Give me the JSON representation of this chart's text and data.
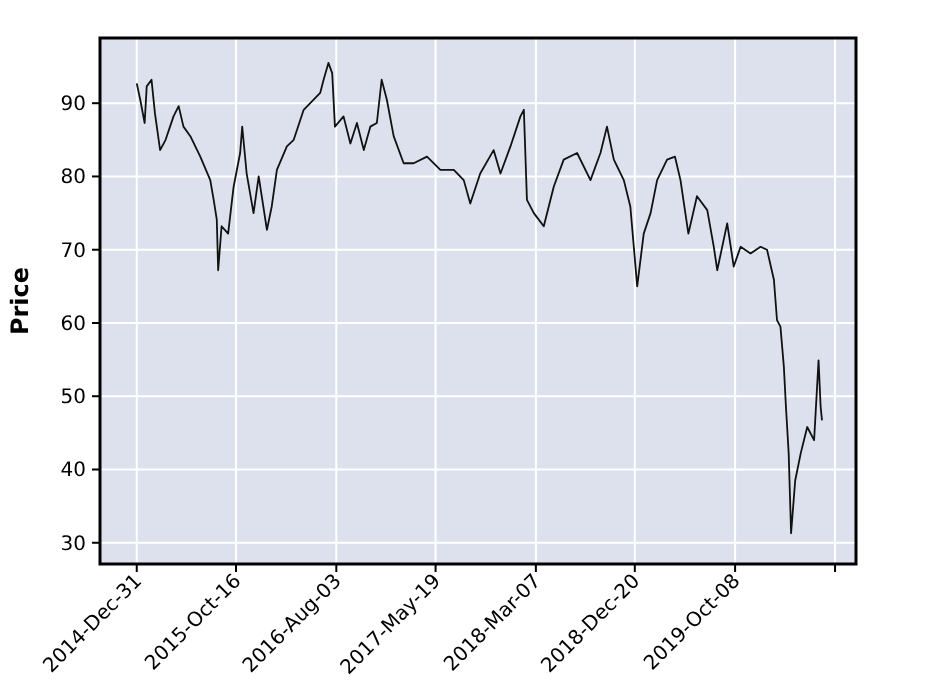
{
  "chart_data": {
    "type": "line",
    "ylabel": "Price",
    "grid": true,
    "marker": "none",
    "line_style": "solid",
    "xlim": [
      "2014-09-15",
      "2020-09-24"
    ],
    "ylim": [
      27.1,
      98.9
    ],
    "yticks": [
      30,
      40,
      50,
      60,
      70,
      80,
      90
    ],
    "xticks": [
      {
        "value": "2014-12-31",
        "label": "2014-Dec-31"
      },
      {
        "value": "2015-10-16",
        "label": "2015-Oct-16"
      },
      {
        "value": "2016-08-03",
        "label": "2016-Aug-03"
      },
      {
        "value": "2017-05-19",
        "label": "2017-May-19"
      },
      {
        "value": "2018-03-07",
        "label": "2018-Mar-07"
      },
      {
        "value": "2018-12-20",
        "label": "2018-Dec-20"
      },
      {
        "value": "2019-10-08",
        "label": "2019-Oct-08"
      },
      {
        "value": "2020-07-25",
        "label": null
      }
    ],
    "x": [
      "2014-12-31",
      "2015-01-10",
      "2015-01-23",
      "2015-01-29",
      "2015-02-12",
      "2015-02-22",
      "2015-03-09",
      "2015-03-25",
      "2015-04-17",
      "2015-05-02",
      "2015-05-16",
      "2015-06-05",
      "2015-07-04",
      "2015-08-02",
      "2015-08-12",
      "2015-08-21",
      "2015-08-25",
      "2015-09-04",
      "2015-09-23",
      "2015-10-09",
      "2015-10-28",
      "2015-11-03",
      "2015-11-16",
      "2015-12-06",
      "2015-12-21",
      "2016-01-14",
      "2016-01-28",
      "2016-02-12",
      "2016-03-12",
      "2016-04-01",
      "2016-04-30",
      "2016-05-29",
      "2016-06-17",
      "2016-06-27",
      "2016-07-11",
      "2016-07-22",
      "2016-07-30",
      "2016-08-24",
      "2016-09-13",
      "2016-10-02",
      "2016-10-22",
      "2016-11-10",
      "2016-11-29",
      "2016-12-13",
      "2016-12-28",
      "2017-01-17",
      "2017-02-15",
      "2017-03-16",
      "2017-04-24",
      "2017-06-02",
      "2017-07-11",
      "2017-08-09",
      "2017-08-28",
      "2017-09-26",
      "2017-11-04",
      "2017-11-24",
      "2017-12-23",
      "2018-01-21",
      "2018-01-31",
      "2018-02-09",
      "2018-03-01",
      "2018-03-30",
      "2018-04-28",
      "2018-05-27",
      "2018-07-05",
      "2018-08-13",
      "2018-09-11",
      "2018-09-30",
      "2018-10-20",
      "2018-11-18",
      "2018-12-07",
      "2018-12-27",
      "2019-01-15",
      "2019-02-04",
      "2019-02-23",
      "2019-03-24",
      "2019-04-16",
      "2019-05-02",
      "2019-05-25",
      "2019-06-19",
      "2019-07-19",
      "2019-08-07",
      "2019-08-17",
      "2019-09-15",
      "2019-10-04",
      "2019-10-24",
      "2019-11-22",
      "2019-12-21",
      "2020-01-09",
      "2020-01-29",
      "2020-02-07",
      "2020-02-17",
      "2020-02-27",
      "2020-03-04",
      "2020-03-12",
      "2020-03-19",
      "2020-03-31",
      "2020-04-16",
      "2020-05-05",
      "2020-05-25",
      "2020-06-07",
      "2020-06-13",
      "2020-06-17"
    ],
    "series": [
      {
        "color": "#111111",
        "values": [
          92.7,
          90.5,
          87.3,
          92.3,
          93.2,
          88.6,
          83.6,
          85.0,
          88.2,
          89.6,
          86.8,
          85.5,
          82.7,
          79.5,
          76.8,
          74.1,
          67.2,
          73.2,
          72.2,
          78.6,
          83.2,
          86.8,
          80.4,
          75.0,
          80.0,
          72.7,
          75.9,
          80.9,
          84.1,
          85.0,
          89.1,
          90.5,
          91.4,
          93.2,
          95.5,
          94.1,
          86.8,
          88.2,
          84.5,
          87.3,
          83.6,
          86.8,
          87.3,
          93.2,
          90.5,
          85.5,
          81.8,
          81.8,
          82.7,
          80.9,
          80.9,
          79.5,
          76.3,
          80.4,
          83.6,
          80.4,
          84.1,
          88.2,
          89.1,
          76.8,
          75.0,
          73.2,
          78.6,
          82.3,
          83.2,
          79.5,
          83.2,
          86.8,
          82.3,
          79.5,
          75.9,
          65.0,
          72.2,
          75.0,
          79.5,
          82.3,
          82.7,
          79.5,
          72.2,
          77.3,
          75.4,
          70.4,
          67.2,
          73.6,
          67.7,
          70.4,
          69.5,
          70.4,
          70.0,
          65.9,
          60.4,
          59.5,
          54.0,
          48.6,
          42.2,
          31.3,
          38.5,
          42.2,
          45.8,
          44.0,
          54.9,
          48.6,
          46.7
        ]
      }
    ]
  }
}
